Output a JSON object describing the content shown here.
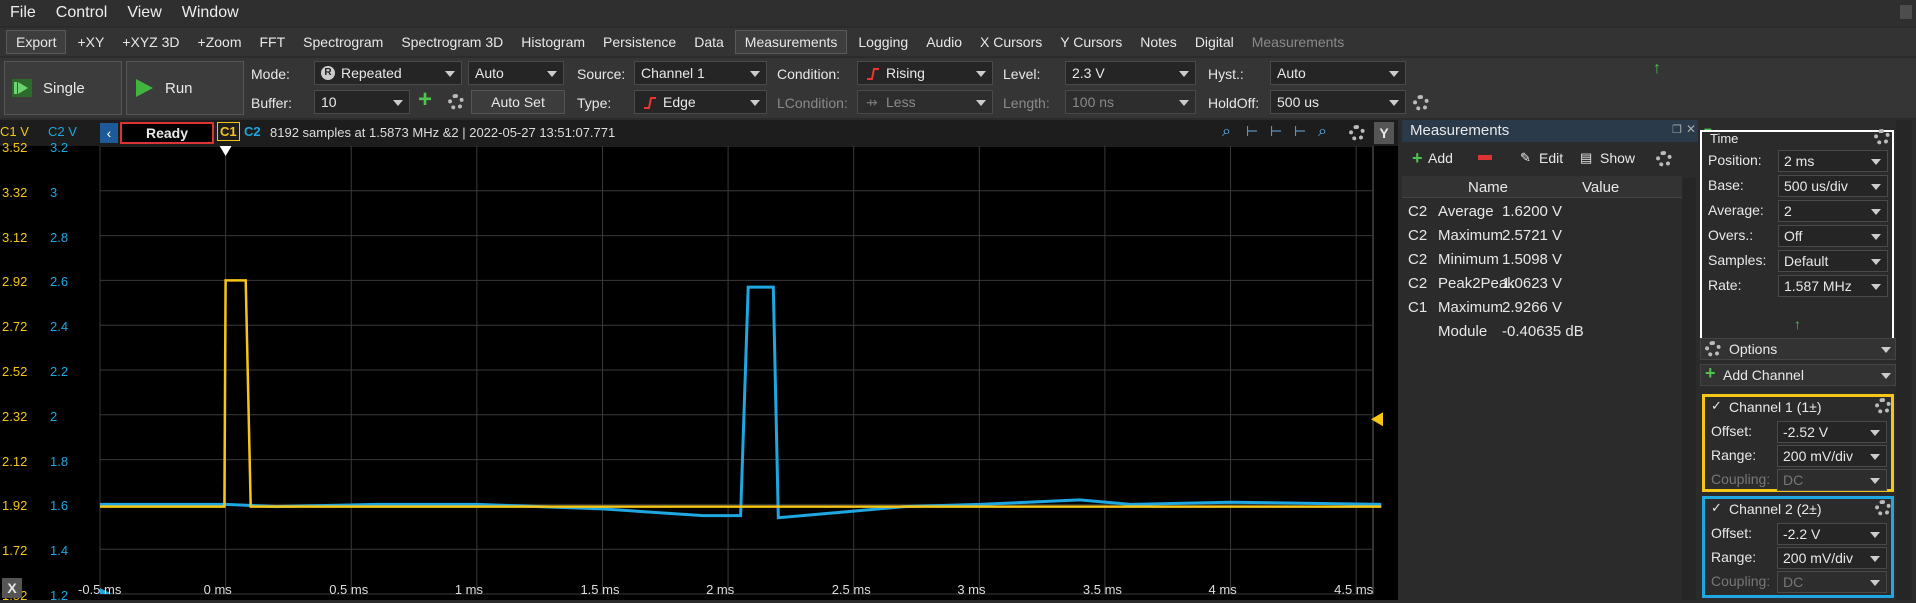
{
  "menu": [
    "File",
    "Control",
    "View",
    "Window"
  ],
  "toolbar": {
    "items": [
      "Export",
      "+XY",
      "+XYZ 3D",
      "+Zoom",
      "FFT",
      "Spectrogram",
      "Spectrogram 3D",
      "Histogram",
      "Persistence",
      "Data",
      "Measurements",
      "Logging",
      "Audio",
      "X Cursors",
      "Y Cursors",
      "Notes",
      "Digital",
      "Measurements"
    ]
  },
  "controls": {
    "single": "Single",
    "run": "Run",
    "mode_label": "Mode:",
    "mode_value": "Repeated",
    "auto_value": "Auto",
    "buffer_label": "Buffer:",
    "buffer_value": "10",
    "autoset": "Auto Set",
    "source_label": "Source:",
    "source_value": "Channel 1",
    "type_label": "Type:",
    "type_value": "Edge",
    "condition_label": "Condition:",
    "condition_value": "Rising",
    "lcondition_label": "LCondition:",
    "lcondition_value": "Less",
    "level_label": "Level:",
    "level_value": "2.3 V",
    "length_label": "Length:",
    "length_value": "100 ns",
    "hyst_label": "Hyst.:",
    "hyst_value": "Auto",
    "holdoff_label": "HoldOff:",
    "holdoff_value": "500 us"
  },
  "scope": {
    "c1_header": "C1 V",
    "c2_header": "C2 V",
    "status": "Ready",
    "c1_tag": "C1",
    "c2_tag": "C2",
    "info": "8192 samples at 1.5873 MHz &2 | 2022-05-27 13:51:07.771",
    "c1_ticks": [
      "3.52",
      "3.32",
      "3.12",
      "2.92",
      "2.72",
      "2.52",
      "2.32",
      "2.12",
      "1.92",
      "1.72",
      "1.52"
    ],
    "c2_ticks": [
      "3.2",
      "3",
      "2.8",
      "2.6",
      "2.4",
      "2.2",
      "2",
      "1.8",
      "1.6",
      "1.4",
      "1.2"
    ],
    "x_ticks": [
      "-0.5 ms",
      "0 ms",
      "0.5 ms",
      "1 ms",
      "1.5 ms",
      "2 ms",
      "2.5 ms",
      "3 ms",
      "3.5 ms",
      "4 ms",
      "4.5 ms"
    ],
    "y_toggle": "Y",
    "x_toggle": "X"
  },
  "colors": {
    "c1": "#f5c518",
    "c2": "#1ea7e0",
    "ready_border": "#dd3333",
    "grid": "#3a3a3a"
  },
  "chart_data": {
    "type": "line",
    "xlabel": "",
    "ylabel": "",
    "xlim": [
      -0.5,
      4.6
    ],
    "series": [
      {
        "name": "C1",
        "x": [
          -0.5,
          -0.005,
          0.0,
          0.08,
          0.1,
          4.6
        ],
        "y": [
          1.91,
          1.91,
          2.92,
          2.92,
          1.91,
          1.91
        ]
      },
      {
        "name": "C2",
        "x": [
          -0.5,
          0.0,
          0.2,
          0.6,
          1.0,
          1.5,
          1.9,
          2.05,
          2.08,
          2.18,
          2.2,
          2.5,
          2.7,
          3.0,
          3.4,
          3.6,
          4.0,
          4.6
        ],
        "y": [
          1.6,
          1.6,
          1.59,
          1.6,
          1.6,
          1.58,
          1.55,
          1.55,
          2.57,
          2.57,
          1.54,
          1.57,
          1.59,
          1.6,
          1.62,
          1.6,
          1.61,
          1.6
        ]
      }
    ],
    "c1_ylim": [
      1.52,
      3.52
    ],
    "c2_ylim": [
      1.2,
      3.2
    ]
  },
  "measurements": {
    "title": "Measurements",
    "add": "Add",
    "edit": "Edit",
    "show": "Show",
    "col_name": "Name",
    "col_value": "Value",
    "rows": [
      {
        "ch": "C2",
        "name": "Average",
        "value": "1.6200 V"
      },
      {
        "ch": "C2",
        "name": "Maximum",
        "value": "2.5721 V"
      },
      {
        "ch": "C2",
        "name": "Minimum",
        "value": "1.5098 V"
      },
      {
        "ch": "C2",
        "name": "Peak2Peak",
        "value": "1.0623 V"
      },
      {
        "ch": "C1",
        "name": "Maximum",
        "value": "2.9266 V"
      },
      {
        "ch": "",
        "name": "Module",
        "value": "-0.40635 dB"
      }
    ]
  },
  "time": {
    "title": "Time",
    "position_label": "Position:",
    "position_value": "2 ms",
    "base_label": "Base:",
    "base_value": "500 us/div",
    "average_label": "Average:",
    "average_value": "2",
    "overs_label": "Overs.:",
    "overs_value": "Off",
    "samples_label": "Samples:",
    "samples_value": "Default",
    "rate_label": "Rate:",
    "rate_value": "1.587 MHz"
  },
  "options": "Options",
  "add_channel": "Add Channel",
  "channel1": {
    "title": "Channel 1 (1±)",
    "offset_label": "Offset:",
    "offset_value": "-2.52 V",
    "range_label": "Range:",
    "range_value": "200 mV/div",
    "coupling_label": "Coupling:",
    "coupling_value": "DC"
  },
  "channel2": {
    "title": "Channel 2 (2±)",
    "offset_label": "Offset:",
    "offset_value": "-2.2 V",
    "range_label": "Range:",
    "range_value": "200 mV/div",
    "coupling_label": "Coupling:",
    "coupling_value": "DC"
  }
}
